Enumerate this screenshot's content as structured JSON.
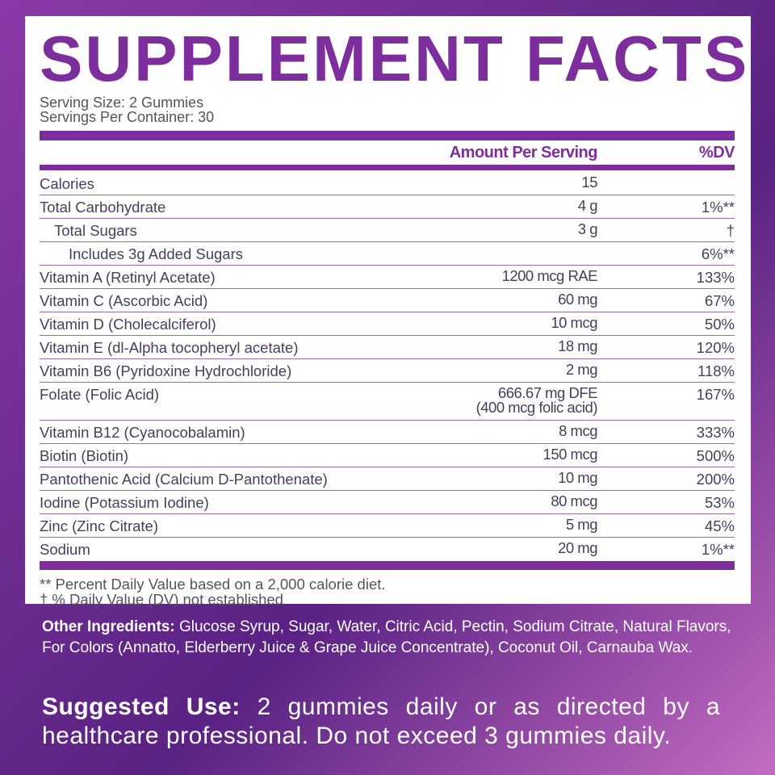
{
  "header": {
    "title": "SUPPLEMENT FACTS"
  },
  "serving": {
    "size": "Serving Size: 2 Gummies",
    "per_container": "Servings Per Container: 30"
  },
  "table": {
    "columns": [
      "Amount Per Serving",
      "%DV"
    ],
    "rows": [
      {
        "name": "Calories",
        "amount": "15"
      },
      {
        "name": "Total Carbohydrate",
        "amount": "4 g",
        "dv": "1%**"
      },
      {
        "name": "Total Sugars",
        "amount": "3 g",
        "dv": "†"
      },
      {
        "name": "Includes 3g Added Sugars",
        "dv": "6%**"
      },
      {
        "name": "Vitamin A (Retinyl Acetate)",
        "amount": "1200 mcg RAE",
        "dv": "133%"
      },
      {
        "name": "Vitamin C (Ascorbic Acid)",
        "amount": "60 mg",
        "dv": "67%"
      },
      {
        "name": "Vitamin D (Cholecalciferol)",
        "amount": "10 mcg",
        "dv": "50%"
      },
      {
        "name": "Vitamin E (dl-Alpha tocopheryl acetate)",
        "amount": "18 mg",
        "dv": "120%"
      },
      {
        "name": "Vitamin B6 (Pyridoxine Hydrochloride)",
        "amount": "2 mg",
        "dv": "118%"
      },
      {
        "name": "Folate (Folic Acid)",
        "amount": "666.67 mg DFE",
        "amount_note": "(400 mcg folic acid)",
        "dv": "167%"
      },
      {
        "name": "Vitamin B12 (Cyanocobalamin)",
        "amount": "8 mcg",
        "dv": "333%"
      },
      {
        "name": "Biotin (Biotin)",
        "amount": "150 mcg",
        "dv": "500%"
      },
      {
        "name": "Pantothenic Acid (Calcium D-Pantothenate)",
        "amount": "10 mg",
        "dv": "200%"
      },
      {
        "name": "Iodine (Potassium Iodine)",
        "amount": "80 mcg",
        "dv": "53%"
      },
      {
        "name": "Zinc (Zinc Citrate)",
        "amount": "5 mg",
        "dv": "45%"
      },
      {
        "name": "Sodium",
        "amount": "20 mg",
        "dv": "1%**"
      }
    ]
  },
  "footnotes": [
    "**  Percent Daily Value based on a 2,000 calorie diet.",
    "† % Daily Value (DV) not established"
  ],
  "other_ingredients": {
    "label": "Other Ingredients:",
    "text": "Glucose Syrup, Sugar, Water, Citric Acid, Pectin, Sodium Citrate, Natural Flavors, For Colors (Annatto, Elderberry Juice & Grape Juice Concentrate), Coconut Oil, Carnauba Wax."
  },
  "suggested_use": {
    "label": "Suggested Use:",
    "text": "2 gummies daily or as directed by a healthcare professional. Do not exceed 3 gummies daily."
  }
}
